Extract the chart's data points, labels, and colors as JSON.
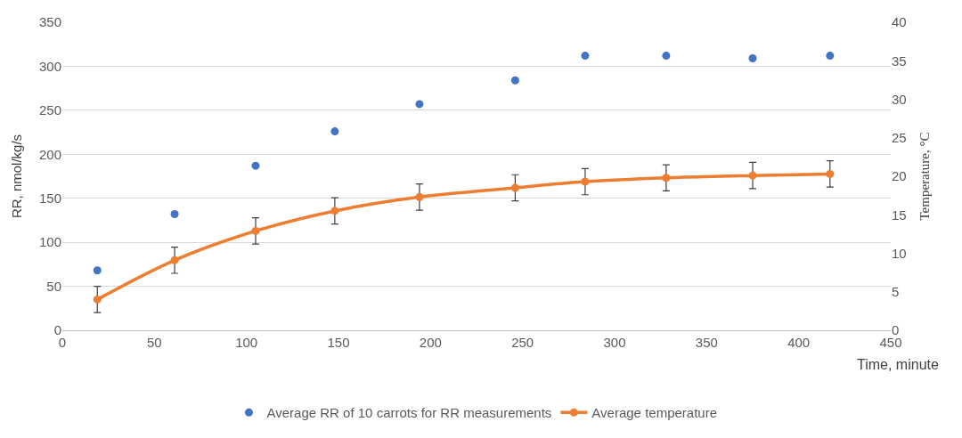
{
  "chart_data": {
    "type": "scatter",
    "xlabel": "Time, minute",
    "ylabel": "RR, nmol/kg/s",
    "y2label": "Temperature, °C",
    "xlim": [
      0,
      450
    ],
    "xticks": [
      0,
      50,
      100,
      150,
      200,
      250,
      300,
      350,
      400,
      450
    ],
    "ylim": [
      0,
      350
    ],
    "yticks": [
      0,
      50,
      100,
      150,
      200,
      250,
      300,
      350
    ],
    "y2lim": [
      0,
      40
    ],
    "y2ticks": [
      0,
      5,
      10,
      15,
      20,
      25,
      30,
      35,
      40
    ],
    "grid": "y",
    "legend": "bottom",
    "marker": "circle",
    "series": [
      {
        "name": "Average RR of 10 carrots for RR measurements",
        "color": "#4472c4",
        "x": [
          19,
          61,
          105,
          148,
          194,
          246,
          284,
          328,
          375,
          417
        ],
        "values": [
          68,
          132,
          187,
          226,
          257,
          284,
          312,
          312,
          309,
          312
        ]
      },
      {
        "name": "Average temperature",
        "type": "line",
        "axis": "y2",
        "color": "#ed7d31",
        "line_style": "solid",
        "x": [
          19,
          61,
          105,
          148,
          194,
          246,
          284,
          328,
          375,
          417
        ],
        "values": [
          4.0,
          9.1,
          12.9,
          15.5,
          17.3,
          18.5,
          19.3,
          19.8,
          20.1,
          20.3
        ],
        "errors": [
          1.7,
          1.7,
          1.7,
          1.7,
          1.7,
          1.7,
          1.7,
          1.7,
          1.7,
          1.7
        ]
      }
    ]
  }
}
